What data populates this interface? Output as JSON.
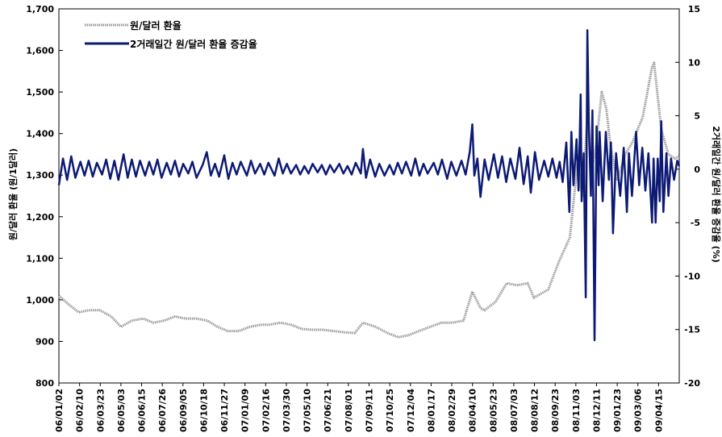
{
  "chart_data": {
    "type": "line",
    "legend": {
      "placement": "top-left"
    },
    "grid": false,
    "left_axis": {
      "label": "원/달러 환율 (원/1달러)",
      "range": [
        800,
        1700
      ],
      "ticks": [
        "800",
        "900",
        "1,000",
        "1,100",
        "1,200",
        "1,300",
        "1,400",
        "1,500",
        "1,600",
        "1,700"
      ]
    },
    "right_axis": {
      "label": "2거래일간 원/달러 환율 증감율 (%)",
      "range": [
        -20,
        15
      ],
      "ticks": [
        "-20",
        "-15",
        "-10",
        "-5",
        "0",
        "5",
        "10",
        "15"
      ]
    },
    "x_axis": {
      "range": [
        "2006-01-02",
        "2009-04-24"
      ],
      "tick_labels": [
        "06/01/02",
        "06/02/10",
        "06/03/23",
        "06/05/03",
        "06/06/15",
        "06/07/26",
        "06/09/05",
        "06/10/18",
        "06/11/27",
        "07/01/09",
        "07/02/16",
        "07/03/30",
        "07/05/10",
        "07/06/21",
        "07/08/01",
        "07/09/11",
        "07/10/25",
        "07/12/04",
        "08/01/17",
        "08/02/29",
        "08/04/10",
        "08/05/23",
        "08/07/03",
        "08/08/12",
        "08/09/23",
        "08/11/03",
        "08/12/11",
        "09/01/23",
        "09/03/06",
        "09/04/15"
      ]
    },
    "series": [
      {
        "name": "원/달러 환율",
        "axis": "left",
        "color": "#9a9a9a",
        "points": [
          [
            "2006-01-02",
            1010
          ],
          [
            "2006-01-20",
            990
          ],
          [
            "2006-02-10",
            970
          ],
          [
            "2006-03-01",
            975
          ],
          [
            "2006-03-23",
            975
          ],
          [
            "2006-04-14",
            960
          ],
          [
            "2006-05-03",
            935
          ],
          [
            "2006-05-24",
            950
          ],
          [
            "2006-06-15",
            955
          ],
          [
            "2006-07-05",
            945
          ],
          [
            "2006-07-26",
            950
          ],
          [
            "2006-08-16",
            960
          ],
          [
            "2006-09-05",
            955
          ],
          [
            "2006-09-27",
            955
          ],
          [
            "2006-10-18",
            950
          ],
          [
            "2006-11-07",
            935
          ],
          [
            "2006-11-27",
            925
          ],
          [
            "2006-12-18",
            925
          ],
          [
            "2007-01-09",
            935
          ],
          [
            "2007-01-29",
            940
          ],
          [
            "2007-02-16",
            940
          ],
          [
            "2007-03-09",
            945
          ],
          [
            "2007-03-30",
            940
          ],
          [
            "2007-04-20",
            930
          ],
          [
            "2007-05-10",
            928
          ],
          [
            "2007-05-31",
            928
          ],
          [
            "2007-06-21",
            925
          ],
          [
            "2007-07-12",
            922
          ],
          [
            "2007-08-01",
            920
          ],
          [
            "2007-08-17",
            945
          ],
          [
            "2007-09-11",
            935
          ],
          [
            "2007-10-04",
            920
          ],
          [
            "2007-10-25",
            910
          ],
          [
            "2007-11-14",
            915
          ],
          [
            "2007-12-04",
            925
          ],
          [
            "2007-12-26",
            935
          ],
          [
            "2008-01-17",
            945
          ],
          [
            "2008-02-07",
            945
          ],
          [
            "2008-02-29",
            950
          ],
          [
            "2008-03-17",
            1020
          ],
          [
            "2008-04-02",
            980
          ],
          [
            "2008-04-10",
            975
          ],
          [
            "2008-05-01",
            995
          ],
          [
            "2008-05-23",
            1040
          ],
          [
            "2008-06-12",
            1035
          ],
          [
            "2008-07-03",
            1040
          ],
          [
            "2008-07-15",
            1005
          ],
          [
            "2008-08-12",
            1025
          ],
          [
            "2008-09-01",
            1090
          ],
          [
            "2008-09-23",
            1150
          ],
          [
            "2008-10-08",
            1330
          ],
          [
            "2008-10-17",
            1250
          ],
          [
            "2008-10-28",
            1460
          ],
          [
            "2008-11-03",
            1300
          ],
          [
            "2008-11-14",
            1380
          ],
          [
            "2008-11-24",
            1500
          ],
          [
            "2008-12-03",
            1460
          ],
          [
            "2008-12-11",
            1370
          ],
          [
            "2008-12-24",
            1290
          ],
          [
            "2009-01-09",
            1350
          ],
          [
            "2009-01-23",
            1380
          ],
          [
            "2009-02-12",
            1440
          ],
          [
            "2009-03-02",
            1560
          ],
          [
            "2009-03-06",
            1570
          ],
          [
            "2009-03-20",
            1410
          ],
          [
            "2009-04-03",
            1350
          ],
          [
            "2009-04-15",
            1340
          ],
          [
            "2009-04-24",
            1345
          ]
        ]
      },
      {
        "name": "2거래일간 원/달러 환율 증감율",
        "axis": "right",
        "color": "#0d1a73",
        "points": [
          [
            "2006-01-02",
            -1.5
          ],
          [
            "2006-01-10",
            1.0
          ],
          [
            "2006-01-18",
            -1.0
          ],
          [
            "2006-01-26",
            1.2
          ],
          [
            "2006-02-03",
            -0.8
          ],
          [
            "2006-02-13",
            0.7
          ],
          [
            "2006-02-21",
            -0.6
          ],
          [
            "2006-03-01",
            0.8
          ],
          [
            "2006-03-09",
            -0.7
          ],
          [
            "2006-03-17",
            0.6
          ],
          [
            "2006-03-27",
            -0.5
          ],
          [
            "2006-04-04",
            0.9
          ],
          [
            "2006-04-12",
            -0.9
          ],
          [
            "2006-04-20",
            0.8
          ],
          [
            "2006-04-28",
            -1.0
          ],
          [
            "2006-05-08",
            1.4
          ],
          [
            "2006-05-16",
            -0.8
          ],
          [
            "2006-05-24",
            0.9
          ],
          [
            "2006-06-01",
            -0.7
          ],
          [
            "2006-06-09",
            0.8
          ],
          [
            "2006-06-19",
            -0.6
          ],
          [
            "2006-06-27",
            0.7
          ],
          [
            "2006-07-05",
            -0.5
          ],
          [
            "2006-07-13",
            0.9
          ],
          [
            "2006-07-21",
            -0.8
          ],
          [
            "2006-07-31",
            0.6
          ],
          [
            "2006-08-08",
            -0.5
          ],
          [
            "2006-08-16",
            0.8
          ],
          [
            "2006-08-24",
            -0.7
          ],
          [
            "2006-09-01",
            0.5
          ],
          [
            "2006-09-11",
            -0.4
          ],
          [
            "2006-09-19",
            0.7
          ],
          [
            "2006-09-27",
            -0.8
          ],
          [
            "2006-10-09",
            0.4
          ],
          [
            "2006-10-17",
            1.6
          ],
          [
            "2006-10-25",
            -0.6
          ],
          [
            "2006-11-02",
            0.5
          ],
          [
            "2006-11-10",
            -0.7
          ],
          [
            "2006-11-20",
            1.3
          ],
          [
            "2006-11-28",
            -0.9
          ],
          [
            "2006-12-06",
            0.6
          ],
          [
            "2006-12-14",
            -0.5
          ],
          [
            "2006-12-22",
            0.7
          ],
          [
            "2007-01-03",
            -0.6
          ],
          [
            "2007-01-11",
            0.8
          ],
          [
            "2007-01-19",
            -0.4
          ],
          [
            "2007-01-29",
            0.5
          ],
          [
            "2007-02-06",
            -0.5
          ],
          [
            "2007-02-14",
            0.6
          ],
          [
            "2007-02-26",
            -0.6
          ],
          [
            "2007-03-06",
            1.0
          ],
          [
            "2007-03-14",
            -0.4
          ],
          [
            "2007-03-22",
            0.5
          ],
          [
            "2007-03-30",
            -0.4
          ],
          [
            "2007-04-09",
            0.4
          ],
          [
            "2007-04-17",
            -0.5
          ],
          [
            "2007-04-25",
            0.3
          ],
          [
            "2007-05-03",
            -0.4
          ],
          [
            "2007-05-11",
            0.5
          ],
          [
            "2007-05-21",
            -0.3
          ],
          [
            "2007-05-29",
            0.4
          ],
          [
            "2007-06-06",
            -0.5
          ],
          [
            "2007-06-14",
            0.4
          ],
          [
            "2007-06-22",
            -0.3
          ],
          [
            "2007-07-02",
            0.5
          ],
          [
            "2007-07-10",
            -0.4
          ],
          [
            "2007-07-18",
            0.3
          ],
          [
            "2007-07-26",
            -0.5
          ],
          [
            "2007-08-03",
            0.6
          ],
          [
            "2007-08-13",
            -0.4
          ],
          [
            "2007-08-17",
            1.9
          ],
          [
            "2007-08-23",
            -0.8
          ],
          [
            "2007-08-31",
            0.9
          ],
          [
            "2007-09-10",
            -0.7
          ],
          [
            "2007-09-18",
            0.5
          ],
          [
            "2007-09-28",
            -0.6
          ],
          [
            "2007-10-08",
            0.4
          ],
          [
            "2007-10-16",
            -0.5
          ],
          [
            "2007-10-24",
            0.6
          ],
          [
            "2007-11-01",
            -0.4
          ],
          [
            "2007-11-09",
            0.7
          ],
          [
            "2007-11-19",
            -0.6
          ],
          [
            "2007-11-27",
            1.0
          ],
          [
            "2007-12-05",
            -0.6
          ],
          [
            "2007-12-13",
            0.5
          ],
          [
            "2007-12-21",
            -0.4
          ],
          [
            "2008-01-02",
            0.6
          ],
          [
            "2008-01-10",
            -0.5
          ],
          [
            "2008-01-18",
            0.9
          ],
          [
            "2008-01-28",
            -0.9
          ],
          [
            "2008-02-05",
            0.7
          ],
          [
            "2008-02-15",
            -0.6
          ],
          [
            "2008-02-25",
            0.8
          ],
          [
            "2008-03-04",
            -0.5
          ],
          [
            "2008-03-12",
            1.6
          ],
          [
            "2008-03-17",
            4.2
          ],
          [
            "2008-03-21",
            -0.6
          ],
          [
            "2008-03-27",
            1.0
          ],
          [
            "2008-04-02",
            -2.6
          ],
          [
            "2008-04-10",
            0.9
          ],
          [
            "2008-04-18",
            -1.0
          ],
          [
            "2008-04-28",
            1.4
          ],
          [
            "2008-05-06",
            -0.8
          ],
          [
            "2008-05-14",
            1.2
          ],
          [
            "2008-05-22",
            -1.2
          ],
          [
            "2008-05-30",
            1.0
          ],
          [
            "2008-06-09",
            -0.9
          ],
          [
            "2008-06-17",
            2.0
          ],
          [
            "2008-06-25",
            -1.4
          ],
          [
            "2008-07-03",
            1.2
          ],
          [
            "2008-07-09",
            -2.2
          ],
          [
            "2008-07-17",
            1.6
          ],
          [
            "2008-07-25",
            -1.0
          ],
          [
            "2008-08-04",
            0.8
          ],
          [
            "2008-08-12",
            -0.7
          ],
          [
            "2008-08-20",
            1.0
          ],
          [
            "2008-08-28",
            -0.8
          ],
          [
            "2008-09-03",
            0.7
          ],
          [
            "2008-09-09",
            -1.2
          ],
          [
            "2008-09-16",
            2.5
          ],
          [
            "2008-09-22",
            -4.0
          ],
          [
            "2008-09-26",
            3.5
          ],
          [
            "2008-09-30",
            -1.5
          ],
          [
            "2008-10-06",
            2.8
          ],
          [
            "2008-10-10",
            -2.0
          ],
          [
            "2008-10-14",
            7.0
          ],
          [
            "2008-10-16",
            -3.0
          ],
          [
            "2008-10-20",
            1.5
          ],
          [
            "2008-10-24",
            -12.0
          ],
          [
            "2008-10-27",
            13.0
          ],
          [
            "2008-10-30",
            4.0
          ],
          [
            "2008-11-03",
            -2.5
          ],
          [
            "2008-11-06",
            5.5
          ],
          [
            "2008-11-10",
            -16.0
          ],
          [
            "2008-11-14",
            4.0
          ],
          [
            "2008-11-18",
            -1.5
          ],
          [
            "2008-11-20",
            3.5
          ],
          [
            "2008-11-26",
            -3.0
          ],
          [
            "2008-12-02",
            3.5
          ],
          [
            "2008-12-08",
            -1.0
          ],
          [
            "2008-12-12",
            2.5
          ],
          [
            "2008-12-16",
            -6.0
          ],
          [
            "2008-12-22",
            1.5
          ],
          [
            "2008-12-30",
            -2.5
          ],
          [
            "2009-01-06",
            2.0
          ],
          [
            "2009-01-12",
            -4.0
          ],
          [
            "2009-01-16",
            1.5
          ],
          [
            "2009-01-22",
            -2.5
          ],
          [
            "2009-01-30",
            3.5
          ],
          [
            "2009-02-05",
            -1.5
          ],
          [
            "2009-02-11",
            2.0
          ],
          [
            "2009-02-17",
            -2.0
          ],
          [
            "2009-02-23",
            1.5
          ],
          [
            "2009-03-02",
            -5.0
          ],
          [
            "2009-03-05",
            1.0
          ],
          [
            "2009-03-09",
            -5.0
          ],
          [
            "2009-03-13",
            1.0
          ],
          [
            "2009-03-17",
            -3.0
          ],
          [
            "2009-03-20",
            4.5
          ],
          [
            "2009-03-24",
            -4.0
          ],
          [
            "2009-03-30",
            1.5
          ],
          [
            "2009-04-03",
            -2.5
          ],
          [
            "2009-04-08",
            1.0
          ],
          [
            "2009-04-14",
            -1.0
          ],
          [
            "2009-04-20",
            0.8
          ],
          [
            "2009-04-24",
            0.3
          ]
        ]
      }
    ]
  }
}
